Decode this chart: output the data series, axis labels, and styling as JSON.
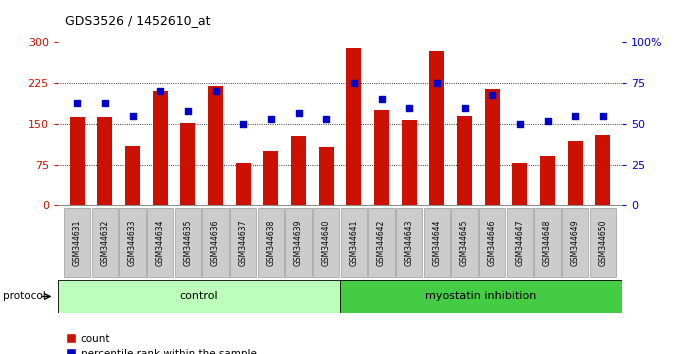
{
  "title": "GDS3526 / 1452610_at",
  "samples": [
    "GSM344631",
    "GSM344632",
    "GSM344633",
    "GSM344634",
    "GSM344635",
    "GSM344636",
    "GSM344637",
    "GSM344638",
    "GSM344639",
    "GSM344640",
    "GSM344641",
    "GSM344642",
    "GSM344643",
    "GSM344644",
    "GSM344645",
    "GSM344646",
    "GSM344647",
    "GSM344648",
    "GSM344649",
    "GSM344650"
  ],
  "counts": [
    163,
    162,
    110,
    210,
    152,
    220,
    78,
    100,
    128,
    108,
    290,
    175,
    157,
    285,
    165,
    215,
    78,
    90,
    118,
    130
  ],
  "percentiles": [
    63,
    63,
    55,
    70,
    58,
    70,
    50,
    53,
    57,
    53,
    75,
    65,
    60,
    75,
    60,
    68,
    50,
    52,
    55,
    55
  ],
  "control_count": 10,
  "bar_color": "#cc1100",
  "dot_color": "#0000cc",
  "control_label": "control",
  "treatment_label": "myostatin inhibition",
  "control_bg": "#bbffbb",
  "treatment_bg": "#44cc44",
  "yticks_left": [
    0,
    75,
    150,
    225,
    300
  ],
  "yticks_right": [
    0,
    25,
    50,
    75,
    100
  ],
  "ylim_left": [
    0,
    300
  ],
  "ylim_right": [
    0,
    100
  ],
  "legend_count": "count",
  "legend_pct": "percentile rank within the sample",
  "protocol_label": "protocol",
  "xlabel_bg": "#cccccc",
  "plot_bg": "#ffffff",
  "border_color": "#888888"
}
